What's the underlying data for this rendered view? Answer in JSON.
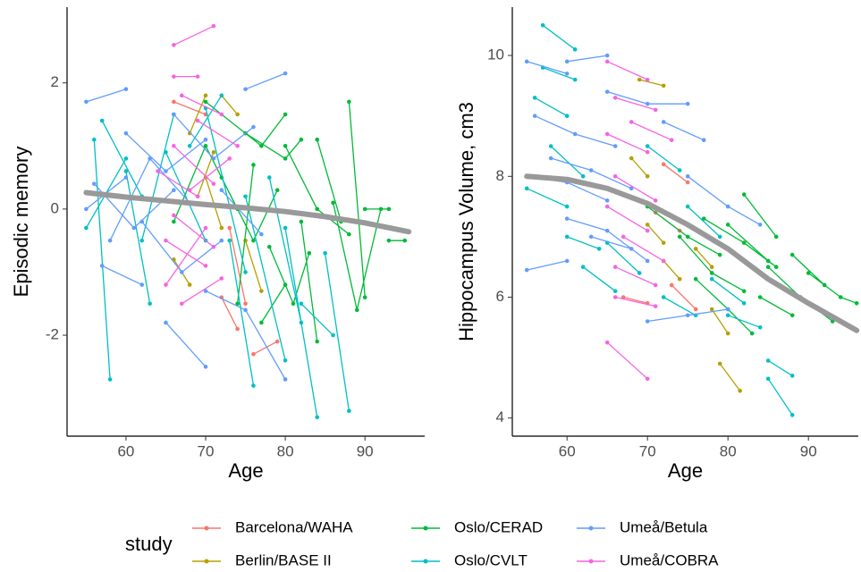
{
  "chart_data": [
    {
      "type": "line",
      "xlabel": "Age",
      "ylabel": "Episodic memory",
      "legend_title": "study",
      "xlim": [
        52.6,
        97.5
      ],
      "ylim": [
        -3.6,
        3.2
      ],
      "xticks": [
        60,
        70,
        80,
        90
      ],
      "yticks": [
        -2,
        0,
        2
      ],
      "series": [
        {
          "name": "Barcelona/WAHA",
          "color": "#F8766D",
          "x": [
            72,
            74,
            null,
            76,
            79,
            null,
            66,
            70,
            null,
            73,
            75
          ],
          "values": [
            -1.4,
            -1.9,
            null,
            -2.3,
            -2.1,
            null,
            1.7,
            1.5,
            null,
            -0.3,
            -1.5
          ]
        },
        {
          "name": "Berlin/BASE II",
          "color": "#B79F00",
          "x": [
            68,
            70,
            null,
            70,
            72,
            null,
            66,
            68,
            null,
            72,
            74,
            null,
            75,
            77,
            null,
            69,
            71
          ],
          "values": [
            1.2,
            1.8,
            null,
            0.5,
            -0.3,
            null,
            -0.8,
            -1.2,
            null,
            1.8,
            1.5,
            null,
            -0.5,
            -1.3,
            null,
            0.2,
            0.9
          ]
        },
        {
          "name": "Oslo/CERAD",
          "color": "#00BA38",
          "x": [
            70,
            77,
            80,
            null,
            75,
            80,
            82,
            null,
            80,
            84,
            88,
            null,
            86,
            89,
            92,
            null,
            88,
            90,
            null,
            90,
            93,
            null,
            93,
            95,
            null,
            78,
            81,
            83,
            null,
            82,
            84,
            null,
            72,
            76,
            79,
            null,
            74,
            76,
            null,
            66,
            70,
            74,
            null,
            84,
            87,
            null,
            77,
            80
          ],
          "values": [
            1.7,
            1.0,
            1.5,
            null,
            1.2,
            0.8,
            1.1,
            null,
            1.0,
            0.0,
            -0.4,
            null,
            0.1,
            -1.6,
            0.0,
            null,
            1.7,
            -1.4,
            null,
            0.0,
            0.0,
            null,
            -0.5,
            -0.5,
            null,
            -0.6,
            -1.5,
            -0.7,
            null,
            -0.2,
            -2.1,
            null,
            0.5,
            -0.5,
            0.3,
            null,
            -1.5,
            0.7,
            null,
            -0.2,
            1.0,
            0.0,
            null,
            1.1,
            -0.2,
            null,
            -1.8,
            -1.2
          ]
        },
        {
          "name": "Oslo/CVLT",
          "color": "#00BFC4",
          "x": [
            56,
            58,
            null,
            60,
            63,
            null,
            57,
            62,
            null,
            65,
            70,
            null,
            70,
            75,
            null,
            73,
            76,
            null,
            80,
            84,
            null,
            85,
            88,
            null,
            78,
            82,
            null,
            62,
            66,
            null,
            55,
            60,
            null,
            82,
            86,
            null,
            68,
            72,
            null,
            75,
            80
          ],
          "values": [
            1.1,
            -2.7,
            null,
            0.6,
            -1.5,
            null,
            1.4,
            0.2,
            null,
            0.9,
            -0.5,
            null,
            1.6,
            -1.0,
            null,
            -0.5,
            -2.8,
            null,
            -0.3,
            -3.3,
            null,
            -0.7,
            -3.2,
            null,
            0.5,
            -1.8,
            null,
            -0.5,
            1.5,
            null,
            -0.3,
            0.8,
            null,
            -1.5,
            -2.0,
            null,
            1.0,
            1.8,
            null,
            0.2,
            -2.4
          ]
        },
        {
          "name": "Umeå/Betula",
          "color": "#619CFF",
          "x": [
            55,
            60,
            null,
            56,
            61,
            66,
            null,
            58,
            63,
            68,
            null,
            60,
            65,
            70,
            null,
            65,
            70,
            null,
            75,
            80,
            null,
            62,
            67,
            72,
            null,
            70,
            75,
            80,
            null,
            55,
            60,
            null,
            66,
            71,
            76,
            null,
            57,
            62,
            null,
            72,
            77
          ],
          "values": [
            1.7,
            1.9,
            null,
            0.4,
            -0.3,
            0.3,
            null,
            -0.5,
            0.8,
            0.1,
            null,
            1.2,
            0.6,
            1.1,
            null,
            -1.8,
            -2.5,
            null,
            1.9,
            2.15,
            null,
            -0.2,
            -1.0,
            -0.5,
            null,
            -1.3,
            -1.6,
            -2.7,
            null,
            0.0,
            0.5,
            null,
            1.5,
            0.8,
            1.3,
            null,
            -0.9,
            -1.2,
            null,
            0.3,
            -0.4
          ]
        },
        {
          "name": "Umeå/COBRA",
          "color": "#F564E3",
          "x": [
            66,
            71,
            null,
            66,
            69,
            null,
            64,
            69,
            null,
            65,
            70,
            null,
            66,
            71,
            null,
            67,
            72,
            null,
            68,
            73,
            null,
            65,
            70,
            null,
            69,
            74,
            null,
            66,
            71,
            null,
            67,
            72
          ],
          "values": [
            2.6,
            2.9,
            null,
            2.1,
            2.1,
            null,
            0.6,
            0.2,
            null,
            -0.5,
            -0.9,
            null,
            1.0,
            0.4,
            null,
            -1.5,
            -1.1,
            null,
            0.3,
            0.8,
            null,
            -1.2,
            -0.3,
            null,
            1.4,
            1.0,
            null,
            -0.1,
            -0.6,
            null,
            1.8,
            1.5
          ]
        }
      ],
      "smooth": {
        "color": "#999999",
        "x": [
          55,
          60,
          65,
          70,
          75,
          80,
          85,
          90,
          95.5
        ],
        "values": [
          0.26,
          0.19,
          0.13,
          0.07,
          0.02,
          -0.04,
          -0.12,
          -0.22,
          -0.36
        ]
      }
    },
    {
      "type": "line",
      "xlabel": "Age",
      "ylabel": "Hippocampus Volume, cm3",
      "xlim": [
        53.2,
        96.2
      ],
      "ylim": [
        3.7,
        10.8
      ],
      "xticks": [
        60,
        70,
        80,
        90
      ],
      "yticks": [
        4,
        6,
        8,
        10
      ],
      "series": [
        {
          "name": "Barcelona/WAHA",
          "color": "#F8766D",
          "x": [
            67,
            70,
            null,
            72,
            75,
            null,
            73,
            76,
            null,
            71,
            74
          ],
          "values": [
            6.0,
            5.9,
            null,
            8.2,
            7.9,
            null,
            6.2,
            5.8,
            null,
            7.4,
            7.1
          ]
        },
        {
          "name": "Berlin/BASE II",
          "color": "#B79F00",
          "x": [
            69,
            72,
            null,
            79,
            81.5,
            null,
            78,
            80,
            null,
            68,
            70,
            null,
            72,
            74,
            null,
            76,
            78,
            null,
            70,
            72
          ],
          "values": [
            9.6,
            9.5,
            null,
            4.9,
            4.45,
            null,
            5.8,
            5.4,
            null,
            8.3,
            8.0,
            null,
            6.6,
            6.3,
            null,
            6.8,
            6.5,
            null,
            7.2,
            6.9
          ]
        },
        {
          "name": "Oslo/CERAD",
          "color": "#00BA38",
          "x": [
            77,
            82,
            86,
            null,
            80,
            85,
            null,
            85,
            89,
            93,
            null,
            90,
            94,
            96,
            null,
            82,
            86,
            null,
            74,
            78,
            82,
            null,
            76,
            80,
            83,
            null,
            88,
            92,
            null,
            70,
            75,
            79,
            null,
            84,
            88
          ],
          "values": [
            7.3,
            6.9,
            6.5,
            null,
            7.2,
            6.6,
            null,
            6.5,
            6.0,
            5.6,
            null,
            6.4,
            6.0,
            5.9,
            null,
            7.7,
            7.0,
            null,
            7.0,
            6.4,
            6.1,
            null,
            6.3,
            5.8,
            5.4,
            null,
            6.7,
            6.2,
            null,
            7.5,
            7.0,
            6.7,
            null,
            6.0,
            5.7
          ]
        },
        {
          "name": "Oslo/CVLT",
          "color": "#00BFC4",
          "x": [
            57,
            61,
            null,
            56,
            60,
            null,
            58,
            62,
            null,
            55,
            60,
            null,
            60,
            64,
            null,
            65,
            69,
            null,
            70,
            74,
            null,
            72,
            76,
            null,
            75,
            79,
            null,
            78,
            82,
            null,
            85,
            88,
            null,
            85,
            88,
            null,
            80,
            84,
            null,
            62,
            66,
            null,
            57,
            61
          ],
          "values": [
            10.5,
            10.1,
            null,
            9.3,
            9.0,
            null,
            8.5,
            8.0,
            null,
            7.8,
            7.5,
            null,
            7.0,
            6.8,
            null,
            6.9,
            6.4,
            null,
            8.5,
            8.1,
            null,
            6.0,
            5.7,
            null,
            7.5,
            7.0,
            null,
            6.3,
            5.9,
            null,
            4.95,
            4.7,
            null,
            4.65,
            4.05,
            null,
            5.7,
            5.5,
            null,
            6.5,
            6.1,
            null,
            9.8,
            9.6
          ]
        },
        {
          "name": "Umeå/Betula",
          "color": "#619CFF",
          "x": [
            55,
            60,
            null,
            60,
            65,
            null,
            56,
            61,
            66,
            null,
            58,
            63,
            68,
            null,
            60,
            65,
            70,
            null,
            55,
            60,
            null,
            65,
            70,
            75,
            null,
            70,
            75,
            80,
            null,
            72,
            77,
            null,
            55,
            60,
            65,
            null,
            75,
            80,
            84,
            null,
            63,
            68
          ],
          "values": [
            9.9,
            9.7,
            null,
            9.9,
            10.0,
            null,
            9.0,
            8.7,
            8.5,
            null,
            8.3,
            8.1,
            7.8,
            null,
            7.3,
            7.1,
            6.6,
            null,
            6.45,
            6.6,
            null,
            9.4,
            9.2,
            9.2,
            null,
            5.6,
            5.7,
            5.8,
            null,
            8.9,
            8.6,
            null,
            8.0,
            7.9,
            7.6,
            null,
            8.0,
            7.5,
            7.2,
            null,
            7.0,
            6.8
          ]
        },
        {
          "name": "Umeå/COBRA",
          "color": "#F564E3",
          "x": [
            65,
            70,
            null,
            65,
            70,
            null,
            66,
            71,
            null,
            65,
            70,
            null,
            66,
            71,
            null,
            65,
            70,
            null,
            67,
            72,
            null,
            66,
            71,
            null,
            68,
            73,
            null,
            66,
            71
          ],
          "values": [
            5.25,
            4.65,
            null,
            9.9,
            9.6,
            null,
            9.3,
            9.1,
            null,
            8.7,
            8.4,
            null,
            8.0,
            7.6,
            null,
            7.5,
            7.1,
            null,
            7.0,
            6.6,
            null,
            6.5,
            6.2,
            null,
            8.9,
            8.6,
            null,
            6.0,
            5.85
          ]
        }
      ],
      "smooth": {
        "color": "#999999",
        "x": [
          55,
          60,
          65,
          70,
          75,
          80,
          85,
          90,
          96
        ],
        "values": [
          8.0,
          7.95,
          7.8,
          7.55,
          7.2,
          6.8,
          6.3,
          5.9,
          5.45
        ]
      }
    }
  ]
}
